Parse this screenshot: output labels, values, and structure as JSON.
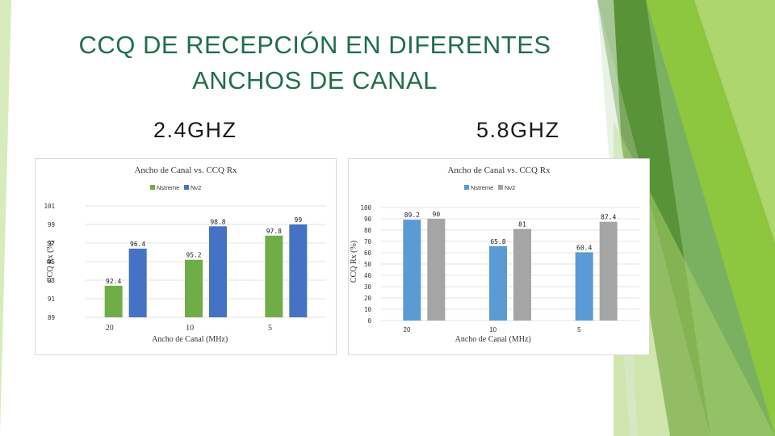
{
  "slide": {
    "title": "CCQ DE RECEPCIÓN EN DIFERENTES ANCHOS DE CANAL",
    "left_heading": "2.4GHZ",
    "right_heading": "5.8GHZ",
    "colors": {
      "title": "#1f6f4a",
      "accent_green": "#8dc63f",
      "dark_green": "#4f8a2a"
    }
  },
  "chart_data": [
    {
      "type": "bar",
      "title": "Ancho de Canal vs. CCQ Rx",
      "xlabel": "Ancho de Canal (MHz)",
      "ylabel": "CCQ Rx (%)",
      "categories": [
        "20",
        "10",
        "5"
      ],
      "ylim": [
        89,
        101
      ],
      "yticks": [
        "89",
        "91",
        "93",
        "95",
        "97",
        "99",
        "101"
      ],
      "legend": "top-center",
      "grid": true,
      "series": [
        {
          "name": "Nstreme",
          "color": "#70ad47",
          "values": [
            92.4,
            95.2,
            97.8
          ]
        },
        {
          "name": "Nv2",
          "color": "#4472c4",
          "values": [
            96.4,
            98.8,
            99
          ]
        }
      ]
    },
    {
      "type": "bar",
      "title": "Ancho de Canal vs. CCQ Rx",
      "xlabel": "Ancho de Canal (MHz)",
      "ylabel": "CCQ Rx (%)",
      "categories": [
        "20",
        "10",
        "5"
      ],
      "ylim": [
        0,
        100
      ],
      "yticks": [
        "0",
        "10",
        "20",
        "30",
        "40",
        "50",
        "60",
        "70",
        "80",
        "90",
        "100"
      ],
      "legend": "top-center",
      "grid": true,
      "series": [
        {
          "name": "Nstreme",
          "color": "#5b9bd5",
          "values": [
            89.2,
            65.8,
            60.4
          ]
        },
        {
          "name": "Nv2",
          "color": "#a5a5a5",
          "values": [
            90,
            81,
            87.4
          ]
        }
      ]
    }
  ]
}
